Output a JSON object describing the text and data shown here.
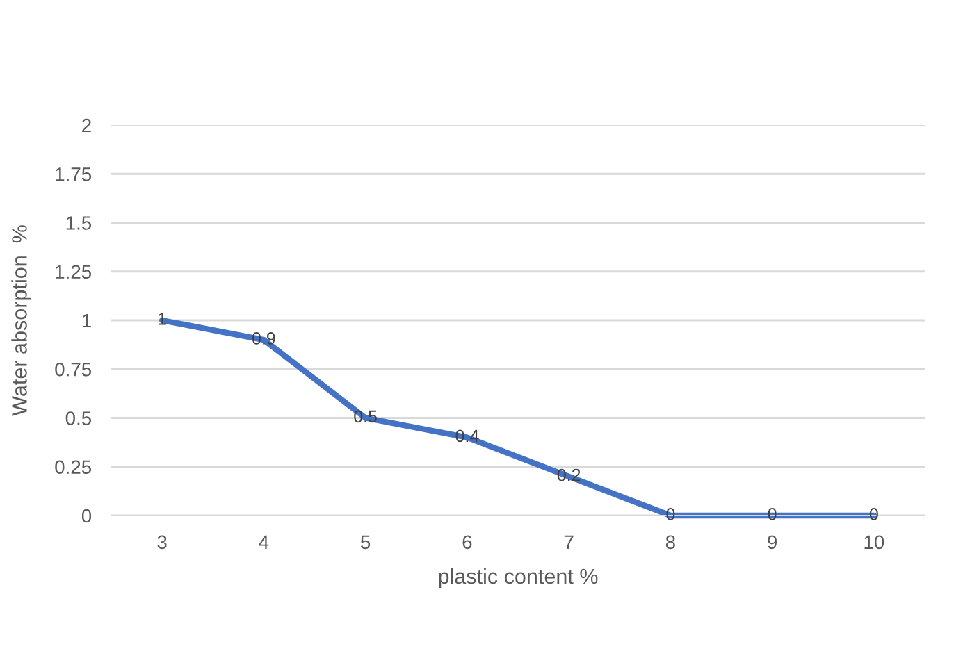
{
  "chart_data": {
    "type": "line",
    "xlabel": "plastic content %",
    "ylabel": "Water absorption  %",
    "categories": [
      "3",
      "4",
      "5",
      "6",
      "7",
      "8",
      "9",
      "10"
    ],
    "series": [
      {
        "color": "#4472c4",
        "values": [
          1,
          0.9,
          0.5,
          0.4,
          0.2,
          0,
          0,
          0
        ]
      }
    ],
    "ylim": [
      0,
      2
    ],
    "yticks": [
      0,
      0.25,
      0.5,
      0.75,
      1,
      1.25,
      1.5,
      1.75,
      2
    ],
    "grid": "y",
    "data_labels": true,
    "marker": "none",
    "line_style": "solid"
  }
}
